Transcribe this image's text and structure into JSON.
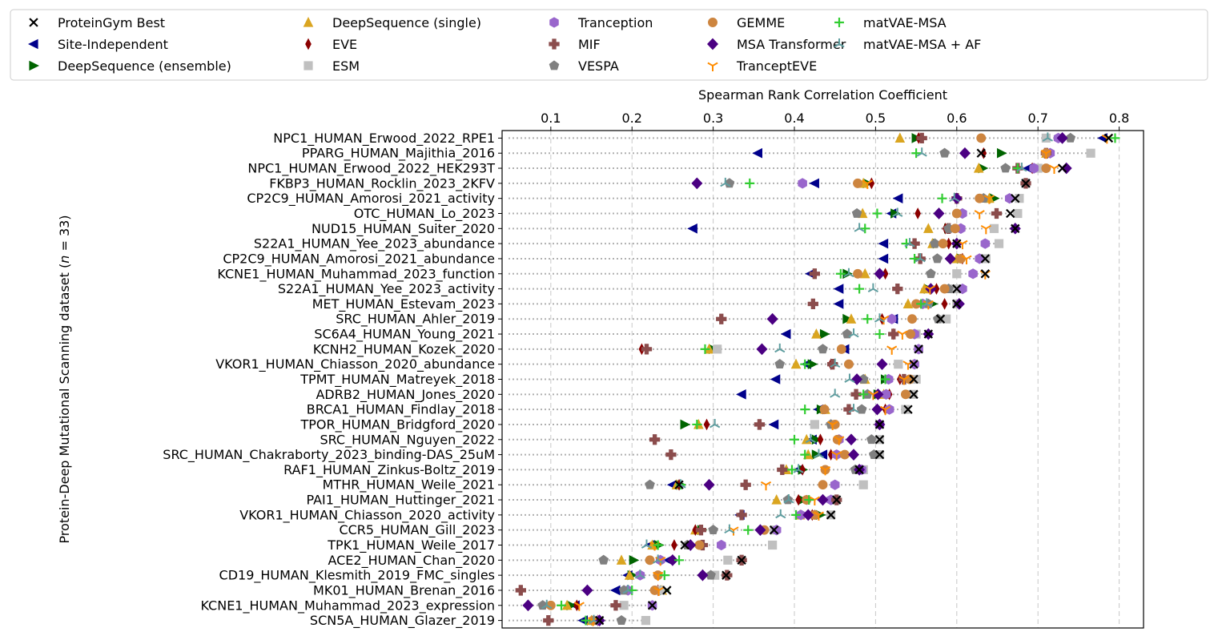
{
  "chart_data": {
    "type": "scatter",
    "title": "",
    "xlabel": "Spearman Rank Correlation Coefficient",
    "ylabel": "Protein-Deep Mutational Scanning dataset (n = 33)",
    "ylabel_parts": {
      "prefix": "Protein-Deep Mutational Scanning dataset (",
      "var": "n",
      "suffix": " = 33)"
    },
    "xlim": [
      0.04,
      0.83
    ],
    "xticks": [
      0.1,
      0.2,
      0.3,
      0.4,
      0.5,
      0.6,
      0.7,
      0.8
    ],
    "xtick_labels": [
      "0.1",
      "0.2",
      "0.3",
      "0.4",
      "0.5",
      "0.6",
      "0.7",
      "0.8"
    ],
    "grid": "vertical dashed",
    "legend_position": "top",
    "series": [
      {
        "name": "ProteinGym Best",
        "marker": "x",
        "color": "#000000"
      },
      {
        "name": "Site-Independent",
        "marker": "triangle-left",
        "color": "#00008b"
      },
      {
        "name": "DeepSequence (ensemble)",
        "marker": "triangle-right",
        "color": "#006400"
      },
      {
        "name": "DeepSequence (single)",
        "marker": "triangle-up",
        "color": "#daa520"
      },
      {
        "name": "EVE",
        "marker": "thin-diamond",
        "color": "#8b0000"
      },
      {
        "name": "ESM",
        "marker": "square",
        "color": "#c0c0c0"
      },
      {
        "name": "Tranception",
        "marker": "hexagon",
        "color": "#9966cc"
      },
      {
        "name": "MIF",
        "marker": "plus-filled",
        "color": "#8b4c4c"
      },
      {
        "name": "VESPA",
        "marker": "pentagon",
        "color": "#808080"
      },
      {
        "name": "GEMME",
        "marker": "circle",
        "color": "#cd853f"
      },
      {
        "name": "MSA Transformer",
        "marker": "diamond",
        "color": "#4b0082"
      },
      {
        "name": "TranceptEVE",
        "marker": "tri-down",
        "color": "#ff8c00"
      },
      {
        "name": "matVAE-MSA",
        "marker": "plus",
        "color": "#32cd32"
      },
      {
        "name": "matVAE-MSA + AF",
        "marker": "tri-up",
        "color": "#5f9ea0"
      }
    ],
    "datasets": [
      {
        "label": "NPC1_HUMAN_Erwood_2022_RPE1",
        "values": [
          0.787,
          0.78,
          0.55,
          0.53,
          0.553,
          0.71,
          0.725,
          0.557,
          0.74,
          0.63,
          0.73,
          0.785,
          0.795,
          0.712
        ]
      },
      {
        "label": "PPARG_HUMAN_Majithia_2016",
        "values": [
          0.63,
          0.355,
          0.655,
          0.71,
          0.633,
          0.765,
          0.715,
          0.71,
          0.585,
          0.71,
          0.61,
          0.71,
          0.55,
          0.557
        ]
      },
      {
        "label": "NPC1_HUMAN_Erwood_2022_HEK293T",
        "values": [
          0.73,
          0.688,
          0.632,
          0.627,
          0.693,
          0.7,
          0.695,
          0.675,
          0.66,
          0.71,
          0.735,
          0.72,
          0.675,
          0.68
        ]
      },
      {
        "label": "FKBP3_HUMAN_Rocklin_2023_2KFV",
        "values": [
          0.685,
          0.425,
          0.49,
          0.485,
          0.495,
          0.685,
          0.41,
          0.685,
          0.32,
          0.478,
          0.28,
          0.49,
          0.345,
          0.315
        ]
      },
      {
        "label": "CP2C9_HUMAN_Amorosi_2021_activity",
        "values": [
          0.672,
          0.528,
          0.646,
          0.64,
          0.6,
          0.677,
          0.665,
          0.6,
          0.633,
          0.628,
          0.6,
          0.64,
          0.582,
          0.597
        ]
      },
      {
        "label": "OTC_HUMAN_Lo_2023",
        "values": [
          0.666,
          0.52,
          0.524,
          0.484,
          0.552,
          0.675,
          0.607,
          0.649,
          0.477,
          0.6,
          0.578,
          0.628,
          0.502,
          0.527
        ]
      },
      {
        "label": "NUD15_HUMAN_Suiter_2020",
        "values": [
          0.672,
          0.275,
          0.59,
          0.565,
          0.586,
          0.646,
          0.605,
          0.59,
          0.59,
          0.598,
          0.672,
          0.636,
          0.487,
          0.48
        ]
      },
      {
        "label": "S22A1_HUMAN_Yee_2023_abundance",
        "values": [
          0.6,
          0.51,
          0.576,
          0.57,
          0.59,
          0.652,
          0.635,
          0.548,
          0.573,
          0.583,
          0.6,
          0.607,
          0.538,
          0.542
        ]
      },
      {
        "label": "CP2C9_HUMAN_Amorosi_2021_abundance",
        "values": [
          0.635,
          0.51,
          0.606,
          0.6,
          0.607,
          0.636,
          0.628,
          0.555,
          0.576,
          0.605,
          0.592,
          0.612,
          0.548,
          0.555
        ]
      },
      {
        "label": "KCNE1_HUMAN_Muhammad_2023_function",
        "values": [
          0.635,
          0.42,
          0.465,
          0.487,
          0.512,
          0.6,
          0.62,
          0.425,
          0.568,
          0.478,
          0.505,
          0.635,
          0.457,
          0.467
        ]
      },
      {
        "label": "S22A1_HUMAN_Yee_2023_activity",
        "values": [
          0.6,
          0.455,
          0.565,
          0.56,
          0.575,
          0.598,
          0.607,
          0.527,
          0.59,
          0.585,
          0.568,
          0.567,
          0.48,
          0.497
        ]
      },
      {
        "label": "MET_HUMAN_Estevam_2023",
        "values": [
          0.6,
          0.455,
          0.57,
          0.54,
          0.585,
          0.6,
          0.558,
          0.423,
          0.565,
          0.55,
          0.603,
          0.565,
          0.556,
          0.563
        ]
      },
      {
        "label": "SRC_HUMAN_Ahler_2019",
        "values": [
          0.58,
          0.522,
          0.465,
          0.47,
          0.508,
          0.587,
          0.52,
          0.31,
          0.577,
          0.545,
          0.373,
          0.51,
          0.49,
          0.505
        ]
      },
      {
        "label": "SC6A4_HUMAN_Young_2021",
        "values": [
          0.565,
          0.39,
          0.437,
          0.427,
          0.522,
          0.55,
          0.548,
          0.522,
          0.465,
          0.543,
          0.565,
          0.533,
          0.505,
          0.473
        ]
      },
      {
        "label": "KCNH2_HUMAN_Kozek_2020",
        "values": [
          0.553,
          0.462,
          0.3,
          0.295,
          0.212,
          0.305,
          0.553,
          0.218,
          0.435,
          0.458,
          0.36,
          0.52,
          0.29,
          0.382
        ]
      },
      {
        "label": "VKOR1_HUMAN_Chiasson_2020_abundance",
        "values": [
          0.547,
          0.415,
          0.422,
          0.402,
          0.445,
          0.528,
          0.548,
          0.447,
          0.382,
          0.467,
          0.508,
          0.54,
          0.413,
          0.45
        ]
      },
      {
        "label": "TPMT_HUMAN_Matreyek_2018",
        "values": [
          0.547,
          0.377,
          0.512,
          0.487,
          0.53,
          0.55,
          0.516,
          0.535,
          0.485,
          0.542,
          0.477,
          0.535,
          0.512,
          0.468
        ]
      },
      {
        "label": "ADRB2_HUMAN_Jones_2020",
        "values": [
          0.547,
          0.335,
          0.503,
          0.51,
          0.517,
          0.546,
          0.513,
          0.476,
          0.49,
          0.537,
          0.503,
          0.497,
          0.485,
          0.45
        ]
      },
      {
        "label": "BRCA1_HUMAN_Findlay_2018",
        "values": [
          0.54,
          0.43,
          0.433,
          0.438,
          0.512,
          0.537,
          0.517,
          0.467,
          0.483,
          0.437,
          0.502,
          0.512,
          0.413,
          0.473
        ]
      },
      {
        "label": "TPOR_HUMAN_Bridgford_2020",
        "values": [
          0.505,
          0.375,
          0.265,
          0.282,
          0.292,
          0.425,
          0.505,
          0.357,
          0.445,
          0.45,
          0.505,
          0.447,
          0.28,
          0.302
        ]
      },
      {
        "label": "SRC_HUMAN_Nguyen_2022",
        "values": [
          0.505,
          0.422,
          0.427,
          0.415,
          0.432,
          0.505,
          0.455,
          0.228,
          0.495,
          0.453,
          0.47,
          0.455,
          0.4,
          0.42
        ]
      },
      {
        "label": "SRC_HUMAN_Chakraborty_2023_binding-DAS_25uM",
        "values": [
          0.505,
          0.435,
          0.427,
          0.417,
          0.445,
          0.505,
          0.452,
          0.248,
          0.498,
          0.462,
          0.473,
          0.452,
          0.413,
          0.43
        ]
      },
      {
        "label": "RAF1_HUMAN_Zinkus-Boltz_2019",
        "values": [
          0.48,
          0.405,
          0.41,
          0.39,
          0.41,
          0.485,
          0.483,
          0.385,
          0.475,
          0.438,
          0.48,
          0.438,
          0.397,
          0.405
        ]
      },
      {
        "label": "MTHR_HUMAN_Weile_2021",
        "values": [
          0.258,
          0.25,
          0.26,
          0.255,
          0.258,
          0.485,
          0.45,
          0.34,
          0.222,
          0.435,
          0.295,
          0.365,
          0.26,
          0.26
        ]
      },
      {
        "label": "PAI1_HUMAN_Huttinger_2021",
        "values": [
          0.452,
          0.41,
          0.41,
          0.378,
          0.405,
          0.45,
          0.445,
          0.452,
          0.392,
          0.415,
          0.435,
          0.425,
          0.418,
          0.393
        ]
      },
      {
        "label": "VKOR1_HUMAN_Chiasson_2020_activity",
        "values": [
          0.445,
          0.333,
          0.432,
          0.407,
          0.422,
          0.445,
          0.408,
          0.335,
          0.425,
          0.425,
          0.417,
          0.43,
          0.402,
          0.383
        ]
      },
      {
        "label": "CCR5_HUMAN_Gill_2023",
        "values": [
          0.375,
          0.282,
          0.286,
          0.278,
          0.278,
          0.375,
          0.378,
          0.285,
          0.3,
          0.363,
          0.358,
          0.325,
          0.343,
          0.32
        ]
      },
      {
        "label": "TPK1_HUMAN_Weile_2017",
        "values": [
          0.265,
          0.222,
          0.233,
          0.225,
          0.252,
          0.373,
          0.31,
          0.287,
          0.268,
          0.283,
          0.272,
          0.228,
          0.232,
          0.218
        ]
      },
      {
        "label": "ACE2_HUMAN_Chan_2020",
        "values": [
          0.335,
          0.245,
          0.202,
          0.187,
          0.25,
          0.318,
          0.235,
          0.335,
          0.165,
          0.222,
          0.25,
          0.235,
          0.258,
          0.232
        ]
      },
      {
        "label": "CD19_HUMAN_Klesmith_2019_FMC_singles",
        "values": [
          0.316,
          0.195,
          0.2,
          0.197,
          0.287,
          0.302,
          0.21,
          0.317,
          0.297,
          0.232,
          0.287,
          0.232,
          0.24,
          0.21
        ]
      },
      {
        "label": "MK01_HUMAN_Brenan_2016",
        "values": [
          0.243,
          0.18,
          0.24,
          0.237,
          0.232,
          0.235,
          0.195,
          0.063,
          0.19,
          0.228,
          0.145,
          0.233,
          0.2,
          0.195
        ]
      },
      {
        "label": "KCNE1_HUMAN_Muhammad_2023_expression",
        "values": [
          0.225,
          0.13,
          0.125,
          0.12,
          0.132,
          0.19,
          0.225,
          0.18,
          0.09,
          0.1,
          0.072,
          0.135,
          0.113,
          0.095
        ]
      },
      {
        "label": "SCN5A_HUMAN_Glazer_2019",
        "values": [
          0.16,
          0.14,
          0.155,
          0.15,
          0.158,
          0.217,
          0.158,
          0.097,
          0.187,
          0.152,
          0.16,
          0.152,
          0.143,
          0.153
        ]
      }
    ]
  }
}
